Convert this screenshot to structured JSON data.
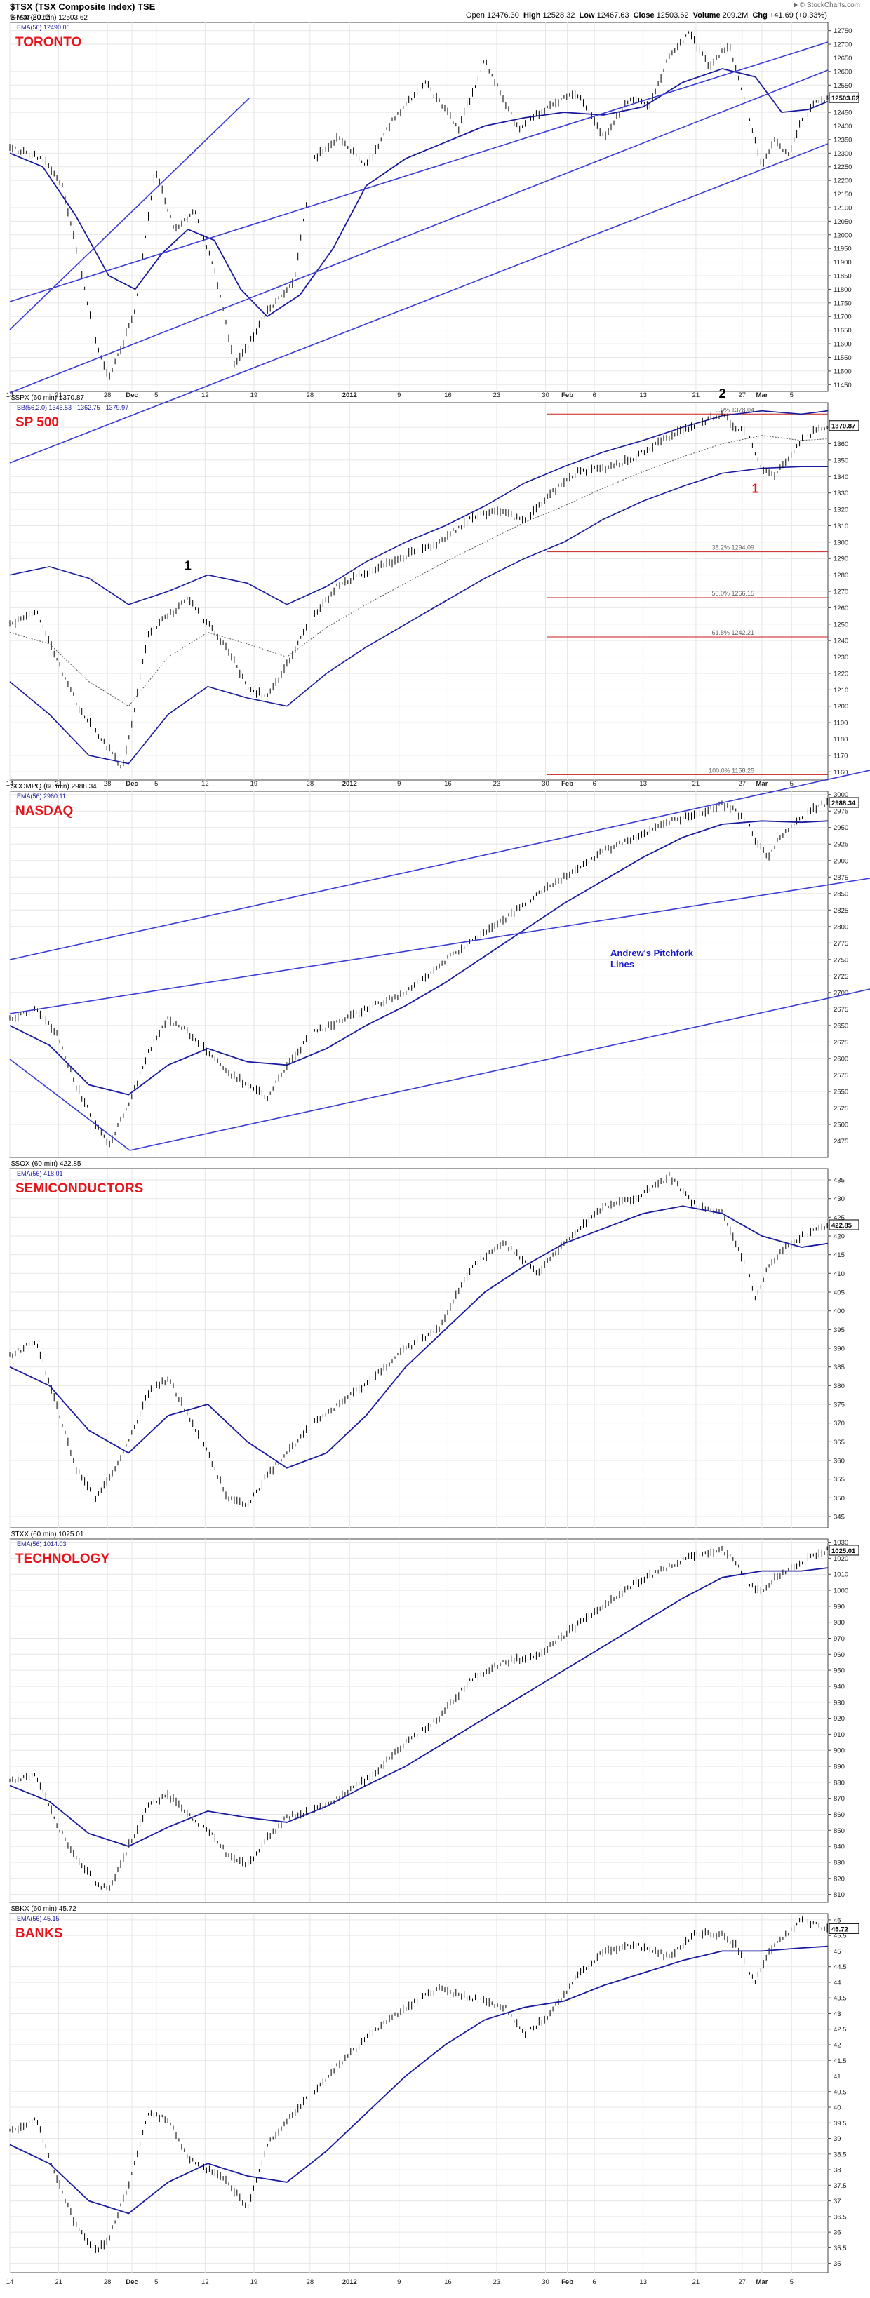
{
  "header": {
    "symbol_line": "$TSX (TSX Composite Index) TSE",
    "date": "9-Mar-2012",
    "open_label": "Open",
    "open": "12476.30",
    "high_label": "High",
    "high": "12528.32",
    "low_label": "Low",
    "low": "12467.63",
    "close_label": "Close",
    "close": "12503.62",
    "volume_label": "Volume",
    "volume": "209.2M",
    "chg_label": "Chg",
    "chg": "+41.69 (+0.33%)",
    "brand": "© StockCharts.com"
  },
  "colors": {
    "price": "#000000",
    "ema": "#1a1a9e",
    "trendline": "#3b3bd6",
    "panel_title": "#e8141c",
    "grid": "#e6e6e6",
    "fib": "#c81e1e",
    "annotation_blue": "#1a1acc",
    "wave_label_red": "#e8141c"
  },
  "time_axis": {
    "labels": [
      "14",
      "21",
      "28",
      "Dec",
      "5",
      "12",
      "19",
      "28",
      "2012",
      "9",
      "16",
      "23",
      "30",
      "Feb",
      "6",
      "13",
      "21",
      "27",
      "Mar",
      "5"
    ],
    "label_positions": [
      0.0,
      0.074,
      0.148,
      0.185,
      0.222,
      0.296,
      0.37,
      0.455,
      0.515,
      0.59,
      0.664,
      0.738,
      0.812,
      0.845,
      0.886,
      0.96,
      1.04,
      1.11,
      1.14,
      1.185
    ],
    "start_fraction": 0.0,
    "note_bold_labels": [
      "Dec",
      "2012",
      "Feb",
      "Mar"
    ]
  },
  "chart_data": [
    {
      "type": "line",
      "title": "TORONTO",
      "symbol_line": "$TSX (60 min) 12503.62",
      "legend": [
        "EMA(56) 12490.06"
      ],
      "last_value_label": "12503.62",
      "ylim": [
        11425,
        12780
      ],
      "yticks": [
        11450,
        11500,
        11550,
        11600,
        11650,
        11700,
        11750,
        11800,
        11850,
        11900,
        11950,
        12000,
        12050,
        12100,
        12150,
        12200,
        12250,
        12300,
        12350,
        12400,
        12450,
        12500,
        12550,
        12600,
        12650,
        12700,
        12750
      ],
      "price": {
        "t": [
          0,
          0.05,
          0.08,
          0.1,
          0.13,
          0.15,
          0.19,
          0.22,
          0.25,
          0.28,
          0.31,
          0.34,
          0.36,
          0.39,
          0.43,
          0.46,
          0.5,
          0.54,
          0.58,
          0.63,
          0.68,
          0.72,
          0.77,
          0.82,
          0.86,
          0.9,
          0.94,
          0.97,
          1.0,
          1.03,
          1.06,
          1.09,
          1.11,
          1.14,
          1.16,
          1.18,
          1.2,
          1.22,
          1.24
        ],
        "v": [
          12320,
          12280,
          12180,
          11960,
          11610,
          11470,
          11720,
          12240,
          12020,
          12090,
          11880,
          11530,
          11590,
          11720,
          11820,
          12280,
          12360,
          12250,
          12420,
          12560,
          12390,
          12640,
          12390,
          12480,
          12520,
          12360,
          12500,
          12470,
          12660,
          12740,
          12620,
          12700,
          12530,
          12250,
          12350,
          12290,
          12420,
          12480,
          12504
        ]
      },
      "ema": {
        "t": [
          0,
          0.05,
          0.1,
          0.15,
          0.19,
          0.23,
          0.27,
          0.31,
          0.35,
          0.39,
          0.44,
          0.49,
          0.54,
          0.6,
          0.66,
          0.72,
          0.78,
          0.84,
          0.9,
          0.96,
          1.02,
          1.08,
          1.13,
          1.17,
          1.21,
          1.24
        ],
        "v": [
          12300,
          12250,
          12070,
          11850,
          11800,
          11930,
          12020,
          11980,
          11800,
          11700,
          11780,
          11950,
          12180,
          12280,
          12340,
          12400,
          12430,
          12450,
          12440,
          12470,
          12560,
          12610,
          12580,
          12450,
          12460,
          12490
        ]
      }
    },
    {
      "type": "line",
      "title": "SP 500",
      "symbol_line": "$SPX (60 min) 1370.87",
      "legend": [
        "BB(56,2.0) 1346.53 - 1362.75 - 1379.97"
      ],
      "last_value_label": "1370.87",
      "ylim": [
        1155,
        1385
      ],
      "yticks": [
        1160,
        1170,
        1180,
        1190,
        1200,
        1210,
        1220,
        1230,
        1240,
        1250,
        1260,
        1270,
        1280,
        1290,
        1300,
        1310,
        1320,
        1330,
        1340,
        1350,
        1360,
        1370
      ],
      "fib_levels": [
        {
          "label": "38.2% 1294.09",
          "value": 1294.09
        },
        {
          "label": "50.0% 1266.15",
          "value": 1266.15
        },
        {
          "label": "61.8% 1242.21",
          "value": 1242.21
        },
        {
          "label": "100.0% 1158.25",
          "value": 1158.25
        },
        {
          "label": "0.0% 1378.04",
          "value": 1378.04
        }
      ],
      "wave_labels": [
        {
          "text": "1",
          "t": 0.27,
          "v": 1283
        },
        {
          "text": "2",
          "t": 1.08,
          "v": 1388
        },
        {
          "text": "1",
          "t": 1.13,
          "v": 1330
        }
      ],
      "price": {
        "t": [
          0,
          0.04,
          0.08,
          0.11,
          0.14,
          0.17,
          0.19,
          0.21,
          0.24,
          0.27,
          0.3,
          0.33,
          0.36,
          0.39,
          0.42,
          0.45,
          0.5,
          0.55,
          0.6,
          0.65,
          0.7,
          0.74,
          0.78,
          0.82,
          0.86,
          0.9,
          0.94,
          0.98,
          1.02,
          1.06,
          1.08,
          1.1,
          1.12,
          1.14,
          1.16,
          1.18,
          1.2,
          1.22,
          1.24
        ],
        "v": [
          1250,
          1258,
          1220,
          1195,
          1180,
          1162,
          1200,
          1245,
          1255,
          1265,
          1250,
          1235,
          1212,
          1205,
          1225,
          1250,
          1275,
          1283,
          1292,
          1300,
          1315,
          1320,
          1312,
          1330,
          1343,
          1345,
          1350,
          1360,
          1368,
          1375,
          1378,
          1370,
          1365,
          1345,
          1340,
          1352,
          1362,
          1368,
          1371
        ]
      },
      "ema": {
        "t": [
          0,
          0.06,
          0.12,
          0.18,
          0.24,
          0.3,
          0.36,
          0.42,
          0.48,
          0.54,
          0.6,
          0.66,
          0.72,
          0.78,
          0.84,
          0.9,
          0.96,
          1.02,
          1.08,
          1.14,
          1.2,
          1.24
        ],
        "v": [
          1245,
          1238,
          1215,
          1200,
          1230,
          1245,
          1238,
          1230,
          1248,
          1262,
          1275,
          1288,
          1300,
          1312,
          1322,
          1333,
          1343,
          1352,
          1360,
          1365,
          1362,
          1363
        ]
      },
      "bb_upper": {
        "t": [
          0,
          0.06,
          0.12,
          0.18,
          0.24,
          0.3,
          0.36,
          0.42,
          0.48,
          0.54,
          0.6,
          0.66,
          0.72,
          0.78,
          0.84,
          0.9,
          0.96,
          1.02,
          1.08,
          1.14,
          1.2,
          1.24
        ],
        "v": [
          1280,
          1285,
          1278,
          1262,
          1270,
          1280,
          1275,
          1262,
          1273,
          1288,
          1300,
          1310,
          1322,
          1336,
          1346,
          1355,
          1362,
          1370,
          1377,
          1380,
          1378,
          1380
        ]
      },
      "bb_lower": {
        "t": [
          0,
          0.06,
          0.12,
          0.18,
          0.24,
          0.3,
          0.36,
          0.42,
          0.48,
          0.54,
          0.6,
          0.66,
          0.72,
          0.78,
          0.84,
          0.9,
          0.96,
          1.02,
          1.08,
          1.14,
          1.2,
          1.24
        ],
        "v": [
          1215,
          1195,
          1170,
          1165,
          1195,
          1212,
          1205,
          1200,
          1220,
          1236,
          1250,
          1264,
          1278,
          1290,
          1300,
          1314,
          1325,
          1334,
          1342,
          1345,
          1346,
          1346
        ]
      }
    },
    {
      "type": "line",
      "title": "NASDAQ",
      "symbol_line": "$COMPQ (60 min) 2988.34",
      "legend": [
        "EMA(56) 2960.11"
      ],
      "last_value_label": "2988.34",
      "ylim": [
        2450,
        3005
      ],
      "yticks": [
        2475,
        2500,
        2525,
        2550,
        2575,
        2600,
        2625,
        2650,
        2675,
        2700,
        2725,
        2750,
        2775,
        2800,
        2825,
        2850,
        2875,
        2900,
        2925,
        2950,
        2975,
        3000
      ],
      "annotation": "Andrew's Pitchfork Lines",
      "price": {
        "t": [
          0,
          0.04,
          0.07,
          0.1,
          0.13,
          0.15,
          0.18,
          0.21,
          0.24,
          0.27,
          0.3,
          0.33,
          0.36,
          0.39,
          0.42,
          0.46,
          0.5,
          0.55,
          0.6,
          0.65,
          0.7,
          0.75,
          0.8,
          0.85,
          0.9,
          0.95,
          1.0,
          1.04,
          1.08,
          1.1,
          1.12,
          1.13,
          1.15,
          1.17,
          1.19,
          1.21,
          1.24
        ],
        "v": [
          2660,
          2675,
          2640,
          2560,
          2500,
          2470,
          2530,
          2610,
          2660,
          2640,
          2610,
          2580,
          2560,
          2540,
          2590,
          2640,
          2655,
          2680,
          2700,
          2740,
          2780,
          2810,
          2850,
          2880,
          2915,
          2935,
          2960,
          2970,
          2985,
          2975,
          2955,
          2930,
          2905,
          2940,
          2955,
          2975,
          2988
        ]
      },
      "ema": {
        "t": [
          0,
          0.06,
          0.12,
          0.18,
          0.24,
          0.3,
          0.36,
          0.42,
          0.48,
          0.54,
          0.6,
          0.66,
          0.72,
          0.78,
          0.84,
          0.9,
          0.96,
          1.02,
          1.08,
          1.14,
          1.2,
          1.24
        ],
        "v": [
          2650,
          2620,
          2560,
          2545,
          2590,
          2615,
          2595,
          2590,
          2615,
          2650,
          2680,
          2715,
          2755,
          2795,
          2835,
          2870,
          2905,
          2935,
          2955,
          2960,
          2958,
          2960
        ]
      }
    },
    {
      "type": "line",
      "title": "SEMICONDUCTORS",
      "symbol_line": "$SOX (60 min) 422.85",
      "legend": [
        "EMA(56) 418.01"
      ],
      "last_value_label": "422.85",
      "ylim": [
        342,
        438
      ],
      "yticks": [
        345,
        350,
        355,
        360,
        365,
        370,
        375,
        380,
        385,
        390,
        395,
        400,
        405,
        410,
        415,
        420,
        425,
        430,
        435
      ],
      "price": {
        "t": [
          0,
          0.04,
          0.07,
          0.1,
          0.13,
          0.15,
          0.18,
          0.21,
          0.24,
          0.27,
          0.3,
          0.33,
          0.36,
          0.39,
          0.42,
          0.46,
          0.5,
          0.55,
          0.6,
          0.65,
          0.7,
          0.75,
          0.8,
          0.85,
          0.9,
          0.95,
          1.0,
          1.04,
          1.08,
          1.1,
          1.12,
          1.13,
          1.15,
          1.17,
          1.2,
          1.24
        ],
        "v": [
          388,
          392,
          375,
          358,
          350,
          355,
          365,
          378,
          382,
          372,
          362,
          350,
          348,
          356,
          362,
          370,
          375,
          382,
          390,
          395,
          412,
          418,
          410,
          420,
          428,
          430,
          436,
          428,
          426,
          418,
          410,
          403,
          412,
          416,
          420,
          423
        ]
      },
      "ema": {
        "t": [
          0,
          0.06,
          0.12,
          0.18,
          0.24,
          0.3,
          0.36,
          0.42,
          0.48,
          0.54,
          0.6,
          0.66,
          0.72,
          0.78,
          0.84,
          0.9,
          0.96,
          1.02,
          1.08,
          1.14,
          1.2,
          1.24
        ],
        "v": [
          385,
          380,
          368,
          362,
          372,
          375,
          365,
          358,
          362,
          372,
          385,
          395,
          405,
          412,
          418,
          422,
          426,
          428,
          426,
          420,
          417,
          418
        ]
      }
    },
    {
      "type": "line",
      "title": "TECHNOLOGY",
      "symbol_line": "$TXX (60 min) 1025.01",
      "legend": [
        "EMA(56) 1014.03"
      ],
      "last_value_label": "1025.01",
      "ylim": [
        805,
        1032
      ],
      "yticks": [
        810,
        820,
        830,
        840,
        850,
        860,
        870,
        880,
        890,
        900,
        910,
        920,
        930,
        940,
        950,
        960,
        970,
        980,
        990,
        1000,
        1010,
        1020,
        1030
      ],
      "price": {
        "t": [
          0,
          0.04,
          0.07,
          0.1,
          0.13,
          0.15,
          0.18,
          0.21,
          0.24,
          0.27,
          0.3,
          0.33,
          0.36,
          0.39,
          0.42,
          0.46,
          0.5,
          0.55,
          0.6,
          0.65,
          0.7,
          0.75,
          0.8,
          0.85,
          0.9,
          0.95,
          1.0,
          1.04,
          1.08,
          1.1,
          1.12,
          1.14,
          1.16,
          1.18,
          1.21,
          1.24
        ],
        "v": [
          880,
          885,
          855,
          832,
          818,
          812,
          840,
          865,
          872,
          860,
          850,
          835,
          828,
          845,
          858,
          862,
          870,
          885,
          905,
          920,
          945,
          955,
          960,
          975,
          990,
          1005,
          1015,
          1022,
          1025,
          1018,
          1005,
          998,
          1008,
          1012,
          1020,
          1025
        ]
      },
      "ema": {
        "t": [
          0,
          0.06,
          0.12,
          0.18,
          0.24,
          0.3,
          0.36,
          0.42,
          0.48,
          0.54,
          0.6,
          0.66,
          0.72,
          0.78,
          0.84,
          0.9,
          0.96,
          1.02,
          1.08,
          1.14,
          1.2,
          1.24
        ],
        "v": [
          878,
          868,
          848,
          840,
          852,
          862,
          858,
          855,
          865,
          878,
          890,
          905,
          920,
          935,
          950,
          965,
          980,
          995,
          1008,
          1012,
          1012,
          1014
        ]
      }
    },
    {
      "type": "line",
      "title": "BANKS",
      "symbol_line": "$BKX (60 min) 45.72",
      "legend": [
        "EMA(56) 45.15"
      ],
      "last_value_label": "45.72",
      "ylim": [
        34.7,
        46.2
      ],
      "yticks": [
        35.0,
        35.5,
        36.0,
        36.5,
        37.0,
        37.5,
        38.0,
        38.5,
        39.0,
        39.5,
        40.0,
        40.5,
        41.0,
        41.5,
        42.0,
        42.5,
        43.0,
        43.5,
        44.0,
        44.5,
        45.0,
        45.5,
        46.0
      ],
      "price": {
        "t": [
          0,
          0.04,
          0.07,
          0.1,
          0.13,
          0.15,
          0.18,
          0.21,
          0.24,
          0.27,
          0.3,
          0.33,
          0.36,
          0.39,
          0.42,
          0.46,
          0.5,
          0.55,
          0.6,
          0.65,
          0.7,
          0.75,
          0.78,
          0.82,
          0.86,
          0.9,
          0.95,
          1.0,
          1.04,
          1.08,
          1.1,
          1.12,
          1.13,
          1.15,
          1.17,
          1.2,
          1.24
        ],
        "v": [
          39.2,
          39.6,
          37.8,
          36.2,
          35.4,
          35.8,
          37.5,
          39.8,
          39.6,
          38.4,
          38.0,
          37.6,
          36.8,
          38.8,
          39.6,
          40.5,
          41.4,
          42.4,
          43.2,
          43.8,
          43.5,
          43.2,
          42.3,
          43.0,
          44.2,
          45.0,
          45.2,
          44.8,
          45.6,
          45.5,
          45.2,
          44.4,
          44.0,
          45.0,
          45.4,
          46.0,
          45.72
        ]
      },
      "ema": {
        "t": [
          0,
          0.06,
          0.12,
          0.18,
          0.24,
          0.3,
          0.36,
          0.42,
          0.48,
          0.54,
          0.6,
          0.66,
          0.72,
          0.78,
          0.84,
          0.9,
          0.96,
          1.02,
          1.08,
          1.14,
          1.2,
          1.24
        ],
        "v": [
          38.8,
          38.2,
          37.0,
          36.6,
          37.6,
          38.2,
          37.8,
          37.6,
          38.6,
          39.8,
          41.0,
          42.0,
          42.8,
          43.2,
          43.4,
          43.9,
          44.3,
          44.7,
          45.0,
          45.0,
          45.1,
          45.15
        ]
      }
    }
  ]
}
